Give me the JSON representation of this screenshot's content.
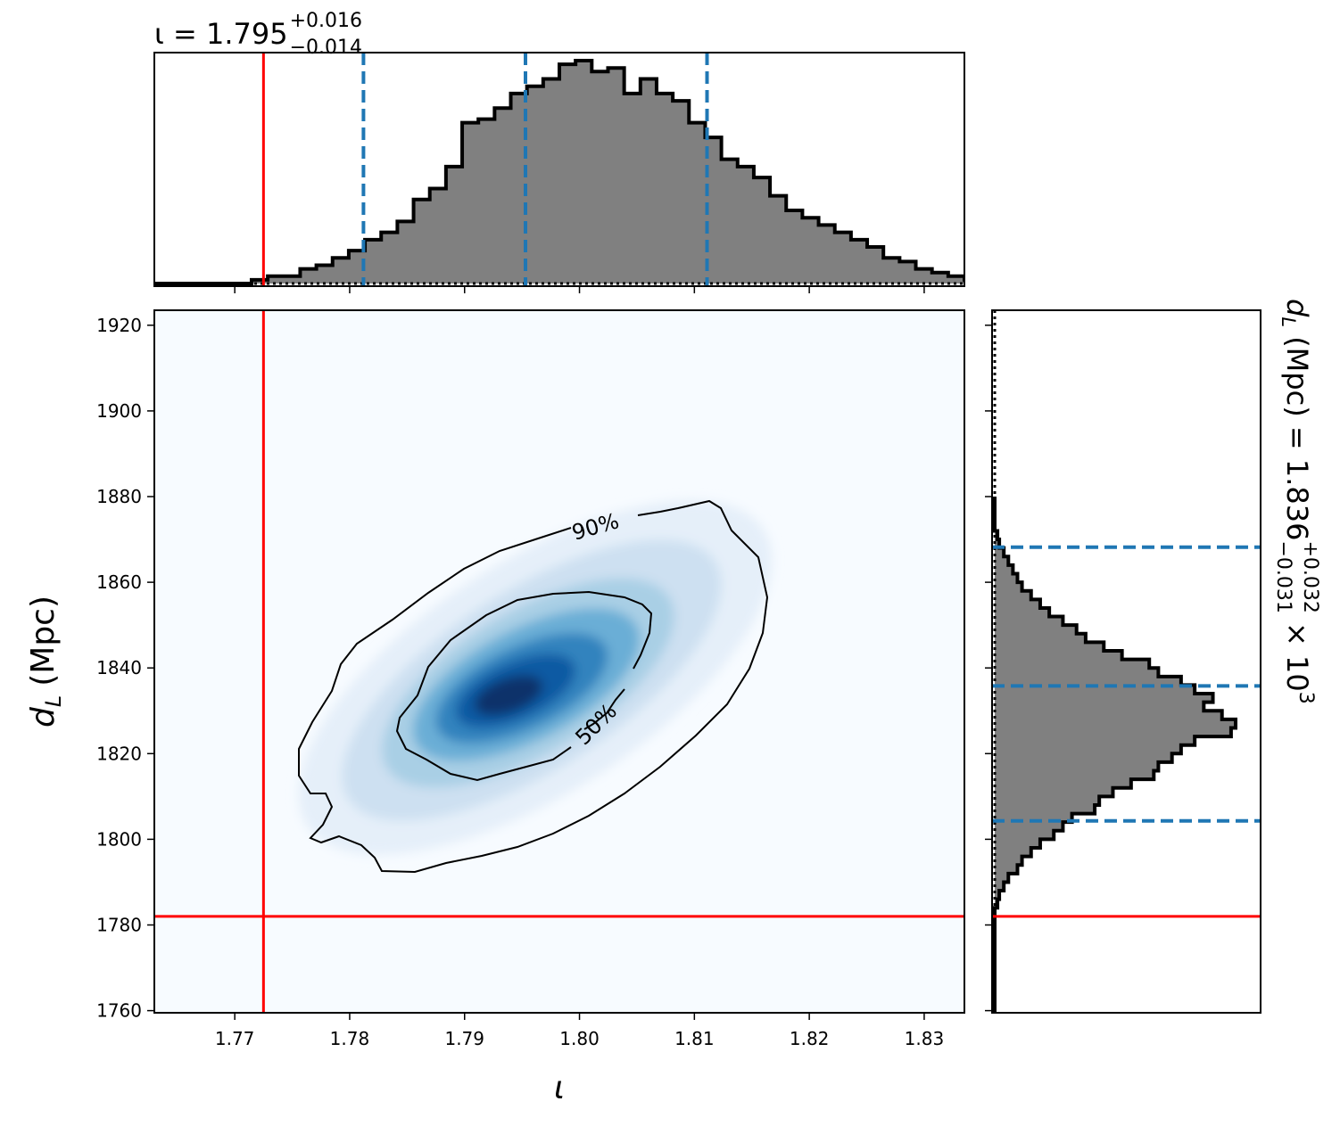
{
  "chart_data": {
    "type": "corner",
    "parameters": {
      "x": {
        "symbol": "ι",
        "range": [
          1.763,
          1.8335
        ],
        "ticks": [
          1.77,
          1.78,
          1.79,
          1.8,
          1.81,
          1.82,
          1.83
        ],
        "tick_labels": [
          "1.77",
          "1.78",
          "1.79",
          "1.80",
          "1.81",
          "1.82",
          "1.83"
        ]
      },
      "y": {
        "symbol": "d",
        "subscript": "L",
        "unit": "(Mpc)",
        "range": [
          1759.5,
          1923.5
        ],
        "ticks": [
          1760,
          1780,
          1800,
          1820,
          1840,
          1860,
          1880,
          1900,
          1920
        ],
        "tick_labels": [
          "1760",
          "1780",
          "1800",
          "1820",
          "1840",
          "1860",
          "1880",
          "1900",
          "1920"
        ]
      }
    },
    "top_title": {
      "prefix": "ι = 1.795",
      "sup": "+0.016",
      "sub": "−0.014"
    },
    "right_title": {
      "prefix": "d",
      "prefix_sub": "L",
      "mid": " (Mpc) = 1.836",
      "sup": "+0.032",
      "sub": "−0.031",
      "suffix": " × 10",
      "exp": "3"
    },
    "injection": {
      "x": 1.7725,
      "y": 1782
    },
    "x_quantiles": [
      1.7812,
      1.7953,
      1.8111
    ],
    "y_quantiles": [
      1804.3,
      1835.8,
      1868.2
    ],
    "contours": [
      {
        "label": "90%",
        "level": 0.9
      },
      {
        "label": "50%",
        "level": 0.5
      }
    ],
    "density_peak": {
      "x": 1.7965,
      "y": 1836.5
    },
    "x_hist": {
      "edges_start": 1.763,
      "bin_width": 0.00141,
      "counts": [
        0,
        0,
        0,
        0,
        0,
        0,
        0.5,
        1,
        1,
        2,
        2.5,
        3.5,
        4.5,
        6,
        7,
        8.5,
        11.5,
        13,
        16,
        22,
        22.5,
        24,
        26,
        27,
        28,
        30,
        30.5,
        29,
        29.5,
        26,
        28,
        26,
        25,
        22,
        20,
        17,
        16,
        14.5,
        12,
        10,
        9,
        8,
        7,
        6,
        5,
        3.5,
        3,
        2,
        1.5,
        1,
        0.5,
        0,
        0,
        0,
        0,
        0,
        0,
        0,
        0,
        0
      ],
      "fill_color": "#808080",
      "edge_color": "#000000"
    },
    "y_hist": {
      "edges_start": 1760,
      "bin_width": 2,
      "counts": [
        0,
        0,
        0,
        0,
        0,
        0,
        0,
        0,
        0,
        0,
        0,
        0,
        0.3,
        0.5,
        1,
        1.5,
        2.5,
        3,
        4,
        5,
        6.5,
        7.5,
        8.5,
        11,
        11.5,
        13,
        15,
        17.5,
        18,
        19.5,
        20.5,
        22,
        26,
        26.5,
        25,
        23,
        24,
        22,
        20.5,
        18,
        17,
        14,
        12,
        10,
        9,
        7.5,
        6,
        5,
        4,
        3,
        2.5,
        2,
        1.5,
        1,
        0.5,
        0.3,
        0,
        0,
        0,
        0
      ],
      "fill_color": "#808080",
      "edge_color": "#000000"
    },
    "colors": {
      "injection": "#ff0000",
      "quantile": "#1f77b4",
      "density_cmap": "Blues"
    }
  }
}
